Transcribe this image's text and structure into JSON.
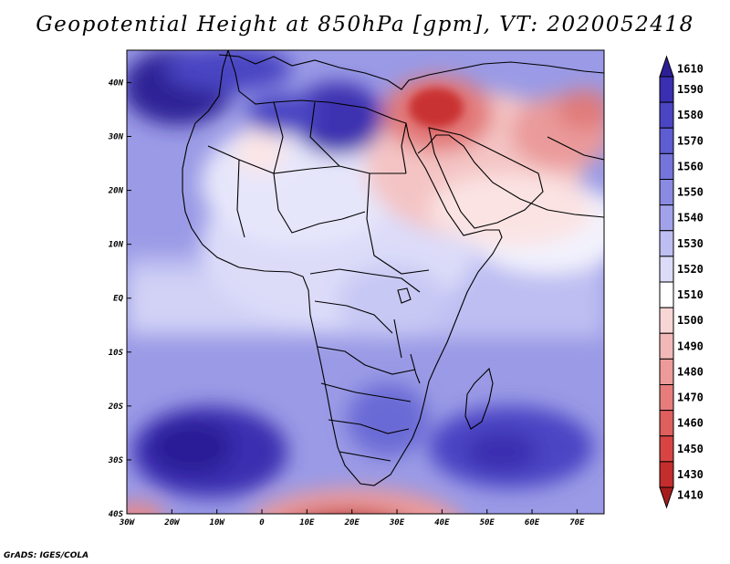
{
  "title": "Geopotential Height at 850hPa [gpm], VT: 2020052418",
  "credit": "GrADS: IGES/COLA",
  "map": {
    "lon_range": [
      -30,
      76
    ],
    "lat_range": [
      -40,
      46
    ],
    "lon_ticks": [
      {
        "value": -30,
        "label": "30W"
      },
      {
        "value": -20,
        "label": "20W"
      },
      {
        "value": -10,
        "label": "10W"
      },
      {
        "value": 0,
        "label": "0"
      },
      {
        "value": 10,
        "label": "10E"
      },
      {
        "value": 20,
        "label": "20E"
      },
      {
        "value": 30,
        "label": "30E"
      },
      {
        "value": 40,
        "label": "40E"
      },
      {
        "value": 50,
        "label": "50E"
      },
      {
        "value": 60,
        "label": "60E"
      },
      {
        "value": 70,
        "label": "70E"
      }
    ],
    "lat_ticks": [
      {
        "value": 40,
        "label": "40N"
      },
      {
        "value": 30,
        "label": "30N"
      },
      {
        "value": 20,
        "label": "20N"
      },
      {
        "value": 10,
        "label": "10N"
      },
      {
        "value": 0,
        "label": "EQ"
      },
      {
        "value": -10,
        "label": "10S"
      },
      {
        "value": -20,
        "label": "20S"
      },
      {
        "value": -30,
        "label": "30S"
      },
      {
        "value": -40,
        "label": "40S"
      }
    ]
  },
  "colorbar": {
    "levels": [
      {
        "label": "1610",
        "color": "#2c1f96"
      },
      {
        "label": "1590",
        "color": "#3a2fb0"
      },
      {
        "label": "1580",
        "color": "#4b45c4"
      },
      {
        "label": "1570",
        "color": "#5e5dd2"
      },
      {
        "label": "1560",
        "color": "#7474da"
      },
      {
        "label": "1550",
        "color": "#8a8ae2"
      },
      {
        "label": "1540",
        "color": "#a2a2ea"
      },
      {
        "label": "1530",
        "color": "#bebef2"
      },
      {
        "label": "1520",
        "color": "#dcdcf9"
      },
      {
        "label": "1510",
        "color": "#ffffff"
      },
      {
        "label": "1500",
        "color": "#f8d6d6"
      },
      {
        "label": "1490",
        "color": "#f2b8b8"
      },
      {
        "label": "1480",
        "color": "#ec9a9a"
      },
      {
        "label": "1470",
        "color": "#e67c7c"
      },
      {
        "label": "1460",
        "color": "#df5e5e"
      },
      {
        "label": "1450",
        "color": "#d84444"
      },
      {
        "label": "1430",
        "color": "#c42d2d"
      },
      {
        "label": "1410",
        "color": "#a51d1d"
      }
    ]
  }
}
